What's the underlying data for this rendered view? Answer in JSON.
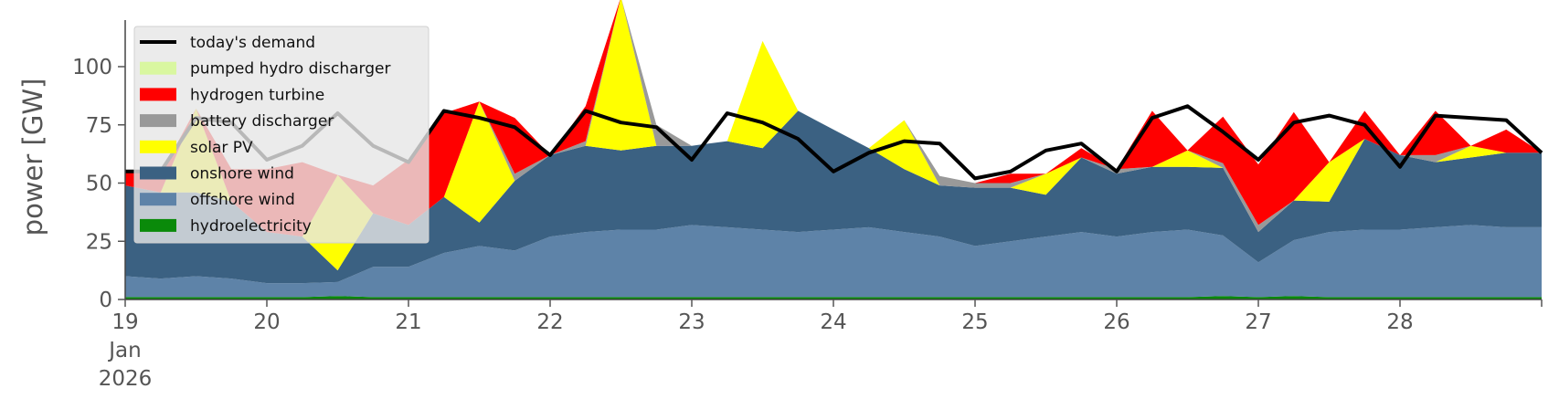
{
  "chart_data": {
    "type": "area",
    "ylabel": "power [GW]",
    "xlabel": "",
    "ylim": [
      0,
      120
    ],
    "yticks": [
      0,
      25,
      50,
      75,
      100
    ],
    "xlim": [
      19.0,
      29.0
    ],
    "xticks": [
      {
        "x": 19,
        "lines": [
          "19",
          "Jan",
          "2026"
        ]
      },
      {
        "x": 20,
        "lines": [
          "20"
        ]
      },
      {
        "x": 21,
        "lines": [
          "21"
        ]
      },
      {
        "x": 22,
        "lines": [
          "22"
        ]
      },
      {
        "x": 23,
        "lines": [
          "23"
        ]
      },
      {
        "x": 24,
        "lines": [
          "24"
        ]
      },
      {
        "x": 25,
        "lines": [
          "25"
        ]
      },
      {
        "x": 26,
        "lines": [
          "26"
        ]
      },
      {
        "x": 27,
        "lines": [
          "27"
        ]
      },
      {
        "x": 28,
        "lines": [
          "28"
        ]
      }
    ],
    "grid": false,
    "legend_position": "top-left",
    "x": [
      19.0,
      19.25,
      19.5,
      19.75,
      20.0,
      20.25,
      20.5,
      20.75,
      21.0,
      21.25,
      21.5,
      21.75,
      22.0,
      22.25,
      22.5,
      22.75,
      23.0,
      23.25,
      23.5,
      23.75,
      24.0,
      24.25,
      24.5,
      24.75,
      25.0,
      25.25,
      25.5,
      25.75,
      26.0,
      26.25,
      26.5,
      26.75,
      27.0,
      27.25,
      27.5,
      27.75,
      28.0,
      28.25,
      28.5,
      28.75,
      29.0
    ],
    "series": [
      {
        "name": "hydroelectricity",
        "color": "#0a8a0a",
        "values": [
          1,
          1,
          1,
          1,
          1,
          1,
          1.5,
          1,
          1,
          1,
          1,
          1,
          1,
          1,
          1,
          1,
          1,
          1,
          1,
          1,
          1,
          1,
          1,
          1,
          1,
          1,
          1,
          1,
          1,
          1,
          1,
          1.5,
          1,
          1.5,
          1,
          1,
          1,
          1,
          1,
          1,
          1
        ]
      },
      {
        "name": "offshore wind",
        "color": "#5e83a8",
        "values": [
          9,
          8,
          9,
          8,
          6,
          6,
          6,
          13,
          13,
          19,
          22,
          20,
          26,
          28,
          29,
          29,
          31,
          30,
          29,
          28,
          29,
          30,
          28,
          26,
          22,
          24,
          26,
          28,
          26,
          28,
          29,
          26,
          15,
          24,
          28,
          29,
          29,
          30,
          31,
          30,
          30
        ]
      },
      {
        "name": "onshore wind",
        "color": "#3b6182",
        "values": [
          39,
          37,
          36,
          33,
          22,
          20,
          5,
          23,
          18,
          24,
          10,
          30,
          35,
          37,
          34,
          36,
          34,
          37,
          35,
          52,
          43,
          34,
          27,
          22,
          25,
          23,
          18,
          32,
          27,
          28,
          27,
          29,
          13,
          17,
          13,
          39,
          32,
          28,
          29,
          32,
          32
        ]
      },
      {
        "name": "solar PV",
        "color": "#ffff00",
        "values": [
          0,
          0,
          36,
          0,
          0,
          0,
          41,
          0,
          0,
          0,
          52,
          0,
          0,
          0,
          66,
          0,
          0,
          0,
          46,
          0,
          0,
          0,
          21,
          0,
          0,
          0,
          9,
          0,
          0,
          0,
          7,
          0,
          0,
          0,
          17,
          0,
          0,
          0,
          5,
          0,
          0
        ]
      },
      {
        "name": "battery discharger",
        "color": "#999999",
        "values": [
          0,
          0,
          0,
          0,
          0,
          0,
          0,
          0,
          0,
          0,
          0,
          3,
          0,
          2,
          0,
          9,
          0,
          0,
          0,
          0,
          0,
          0,
          0,
          4,
          2,
          2,
          0,
          0,
          2,
          0,
          0,
          2,
          3,
          0,
          0,
          0,
          0,
          3,
          0,
          0,
          0
        ]
      },
      {
        "name": "hydrogen turbine",
        "color": "#ff0000",
        "values": [
          6,
          8,
          0,
          14,
          27,
          32,
          0,
          12,
          28,
          36,
          0,
          24,
          0,
          15,
          0,
          0,
          0,
          0,
          0,
          0,
          0,
          0,
          0,
          0,
          0,
          4,
          0,
          4,
          0,
          24,
          0,
          20,
          26,
          38,
          0,
          12,
          0,
          19,
          0,
          10,
          0
        ]
      },
      {
        "name": "pumped hydro discharger",
        "color": "#d9f7a0",
        "values": [
          0,
          0,
          0,
          0,
          0,
          0,
          0,
          0,
          0,
          0,
          0,
          0,
          0,
          0,
          0,
          0,
          0,
          0,
          0,
          0,
          0,
          0,
          0,
          0,
          0,
          0,
          0,
          0,
          0,
          0,
          0,
          0,
          0,
          0,
          0,
          0,
          0,
          0,
          0,
          0,
          0
        ]
      }
    ],
    "demand": {
      "name": "today's demand",
      "color": "#000000",
      "values": [
        55,
        55,
        78,
        76,
        60,
        66,
        80,
        66,
        59,
        81,
        78,
        74,
        62,
        81,
        76,
        74,
        60,
        80,
        76,
        69,
        55,
        63,
        68,
        67,
        52,
        55,
        64,
        67,
        55,
        78,
        83,
        72,
        60,
        76,
        79,
        75,
        57,
        79,
        78,
        77,
        63
      ]
    },
    "legend": [
      {
        "label": "today's demand",
        "kind": "line",
        "color": "#000000"
      },
      {
        "label": "pumped hydro discharger",
        "kind": "patch",
        "color": "#d9f7a0"
      },
      {
        "label": "hydrogen turbine",
        "kind": "patch",
        "color": "#ff0000"
      },
      {
        "label": "battery discharger",
        "kind": "patch",
        "color": "#999999"
      },
      {
        "label": "solar PV",
        "kind": "patch",
        "color": "#ffff00"
      },
      {
        "label": "onshore wind",
        "kind": "patch",
        "color": "#3b6182"
      },
      {
        "label": "offshore wind",
        "kind": "patch",
        "color": "#5e83a8"
      },
      {
        "label": "hydroelectricity",
        "kind": "patch",
        "color": "#0a8a0a"
      }
    ]
  }
}
